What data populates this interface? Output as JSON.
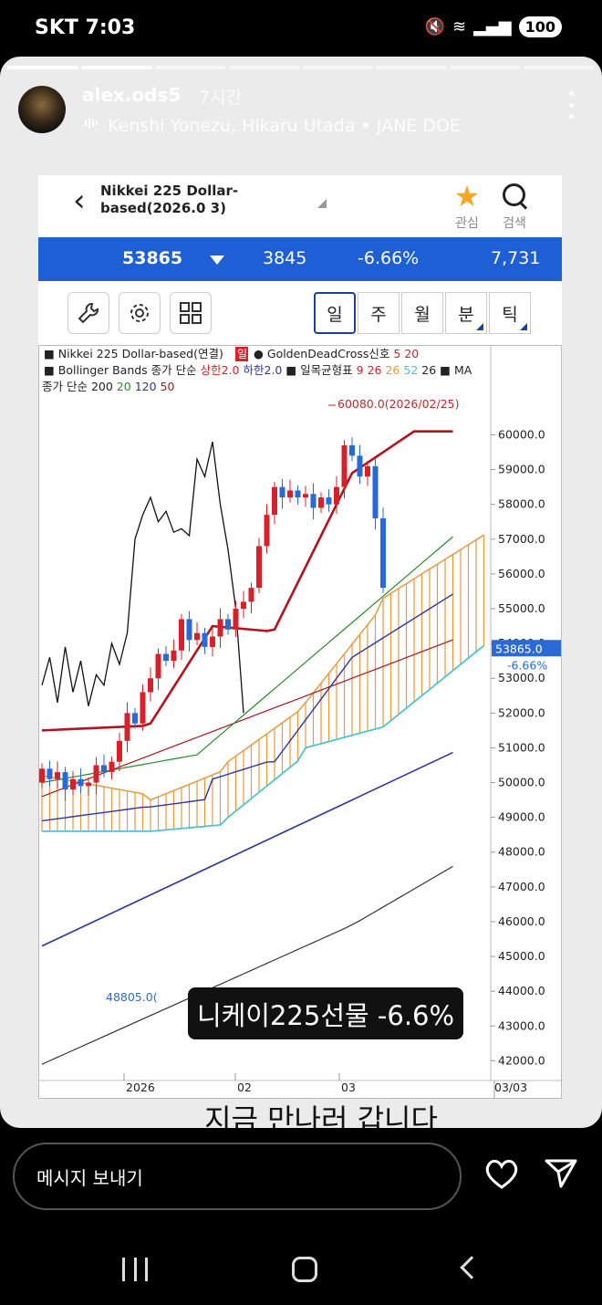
{
  "status_bar": {
    "carrier": "SKT",
    "time": "7:03",
    "battery": "100"
  },
  "story": {
    "username": "alex.ods5",
    "time_ago": "7시간",
    "music": "Kenshi Yonezu, Hikaru Utada • JANE DOE",
    "progress_total": 8,
    "progress_done": 2
  },
  "chart_app": {
    "title": "Nikkei 225 Dollar-based(2026.0 3)",
    "fav_label": "관심",
    "search_label": "검색",
    "price": "53865",
    "change": "3845",
    "change_pct": "-6.66%",
    "volume": "7,731",
    "periods": [
      "일",
      "주",
      "월",
      "분",
      "틱"
    ],
    "active_period": "일",
    "legend": {
      "line1_a": "■ Nikkei 225 Dollar-based(연결)",
      "line1_badge": "일",
      "line1_b": "● GoldenDeadCross신호",
      "line1_c": "5 20",
      "line2_a": "■ Bollinger Bands 종가 단순",
      "line2_b": "상한2.0",
      "line2_c": "하한2.0",
      "line2_d": "■ 일목균형표",
      "line2_e": "9 26",
      "line2_f": "26",
      "line2_g": "52",
      "line2_h": "26",
      "line2_i": "■ MA",
      "line3_a": "종가 단순 200",
      "line3_b": "20",
      "line3_c": "120",
      "line3_d": "50"
    }
  },
  "chart_data": {
    "type": "candlestick",
    "y_ticks": [
      "60000.0",
      "59000.0",
      "58000.0",
      "57000.0",
      "56000.0",
      "55000.0",
      "54000.0",
      "53000.0",
      "52000.0",
      "51000.0",
      "50000.0",
      "49000.0",
      "48000.0",
      "47000.0",
      "46000.0",
      "45000.0",
      "44000.0",
      "43000.0",
      "42000.0"
    ],
    "ylim": [
      41800,
      60800
    ],
    "x_ticks": [
      "2026",
      "02",
      "03"
    ],
    "x_end_label": "03/03",
    "high_annotation": "60080.0(2026/02/25)",
    "low_annotation": "48805.0(",
    "price_label": "53865.0",
    "price_pct": "-6.66%",
    "price_value": 53865,
    "colors": {
      "up": "#d6202a",
      "down": "#2a6ad8",
      "cloud": "#e89a40",
      "span_b": "#4fc3d6",
      "bb": "#b3121e",
      "ma200": "#333333",
      "ma120": "#2c35a8"
    }
  },
  "caption": "니케이225선물 -6.6%",
  "subtext": "지금 만나러 갑니다",
  "reply": {
    "placeholder": "메시지 보내기"
  }
}
